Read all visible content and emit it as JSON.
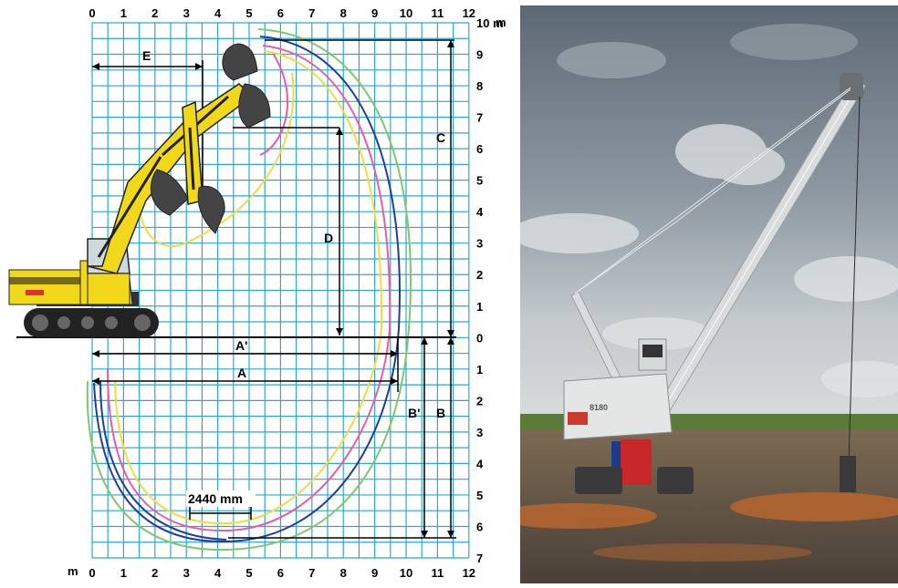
{
  "diagram": {
    "top_axis": {
      "ticks": [
        "0",
        "1",
        "2",
        "3",
        "4",
        "5",
        "6",
        "7",
        "8",
        "9",
        "10",
        "11",
        "12"
      ],
      "unit": "m"
    },
    "bottom_axis": {
      "unit_prefix": "m",
      "ticks": [
        "0",
        "1",
        "2",
        "3",
        "4",
        "5",
        "6",
        "7",
        "8",
        "9",
        "10",
        "11",
        "12"
      ]
    },
    "right_axis_upper": {
      "ticks": [
        "10 m",
        "9",
        "8",
        "7",
        "6",
        "5",
        "4",
        "3",
        "2",
        "1",
        "0"
      ]
    },
    "right_axis_lower": {
      "ticks": [
        "1",
        "2",
        "3",
        "4",
        "5",
        "6",
        "7"
      ]
    },
    "dimension_labels": {
      "E": "E",
      "C": "C",
      "D": "D",
      "A_prime": "A'",
      "A": "A",
      "B_prime": "B'",
      "B": "B"
    },
    "bucket_width_label": "2440 mm",
    "machine_label": "",
    "colors": {
      "grid": "#2aa6d8",
      "curve_blue": "#1e3e9c",
      "curve_green": "#7fc86a",
      "curve_pink": "#ea5aa8",
      "curve_yellow": "#f0dc3c",
      "machine_yellow": "#f2d81a",
      "bucket": "#444444"
    }
  },
  "photo": {
    "description_icon": "dragline-crane-icon",
    "machine_text": "8180"
  }
}
